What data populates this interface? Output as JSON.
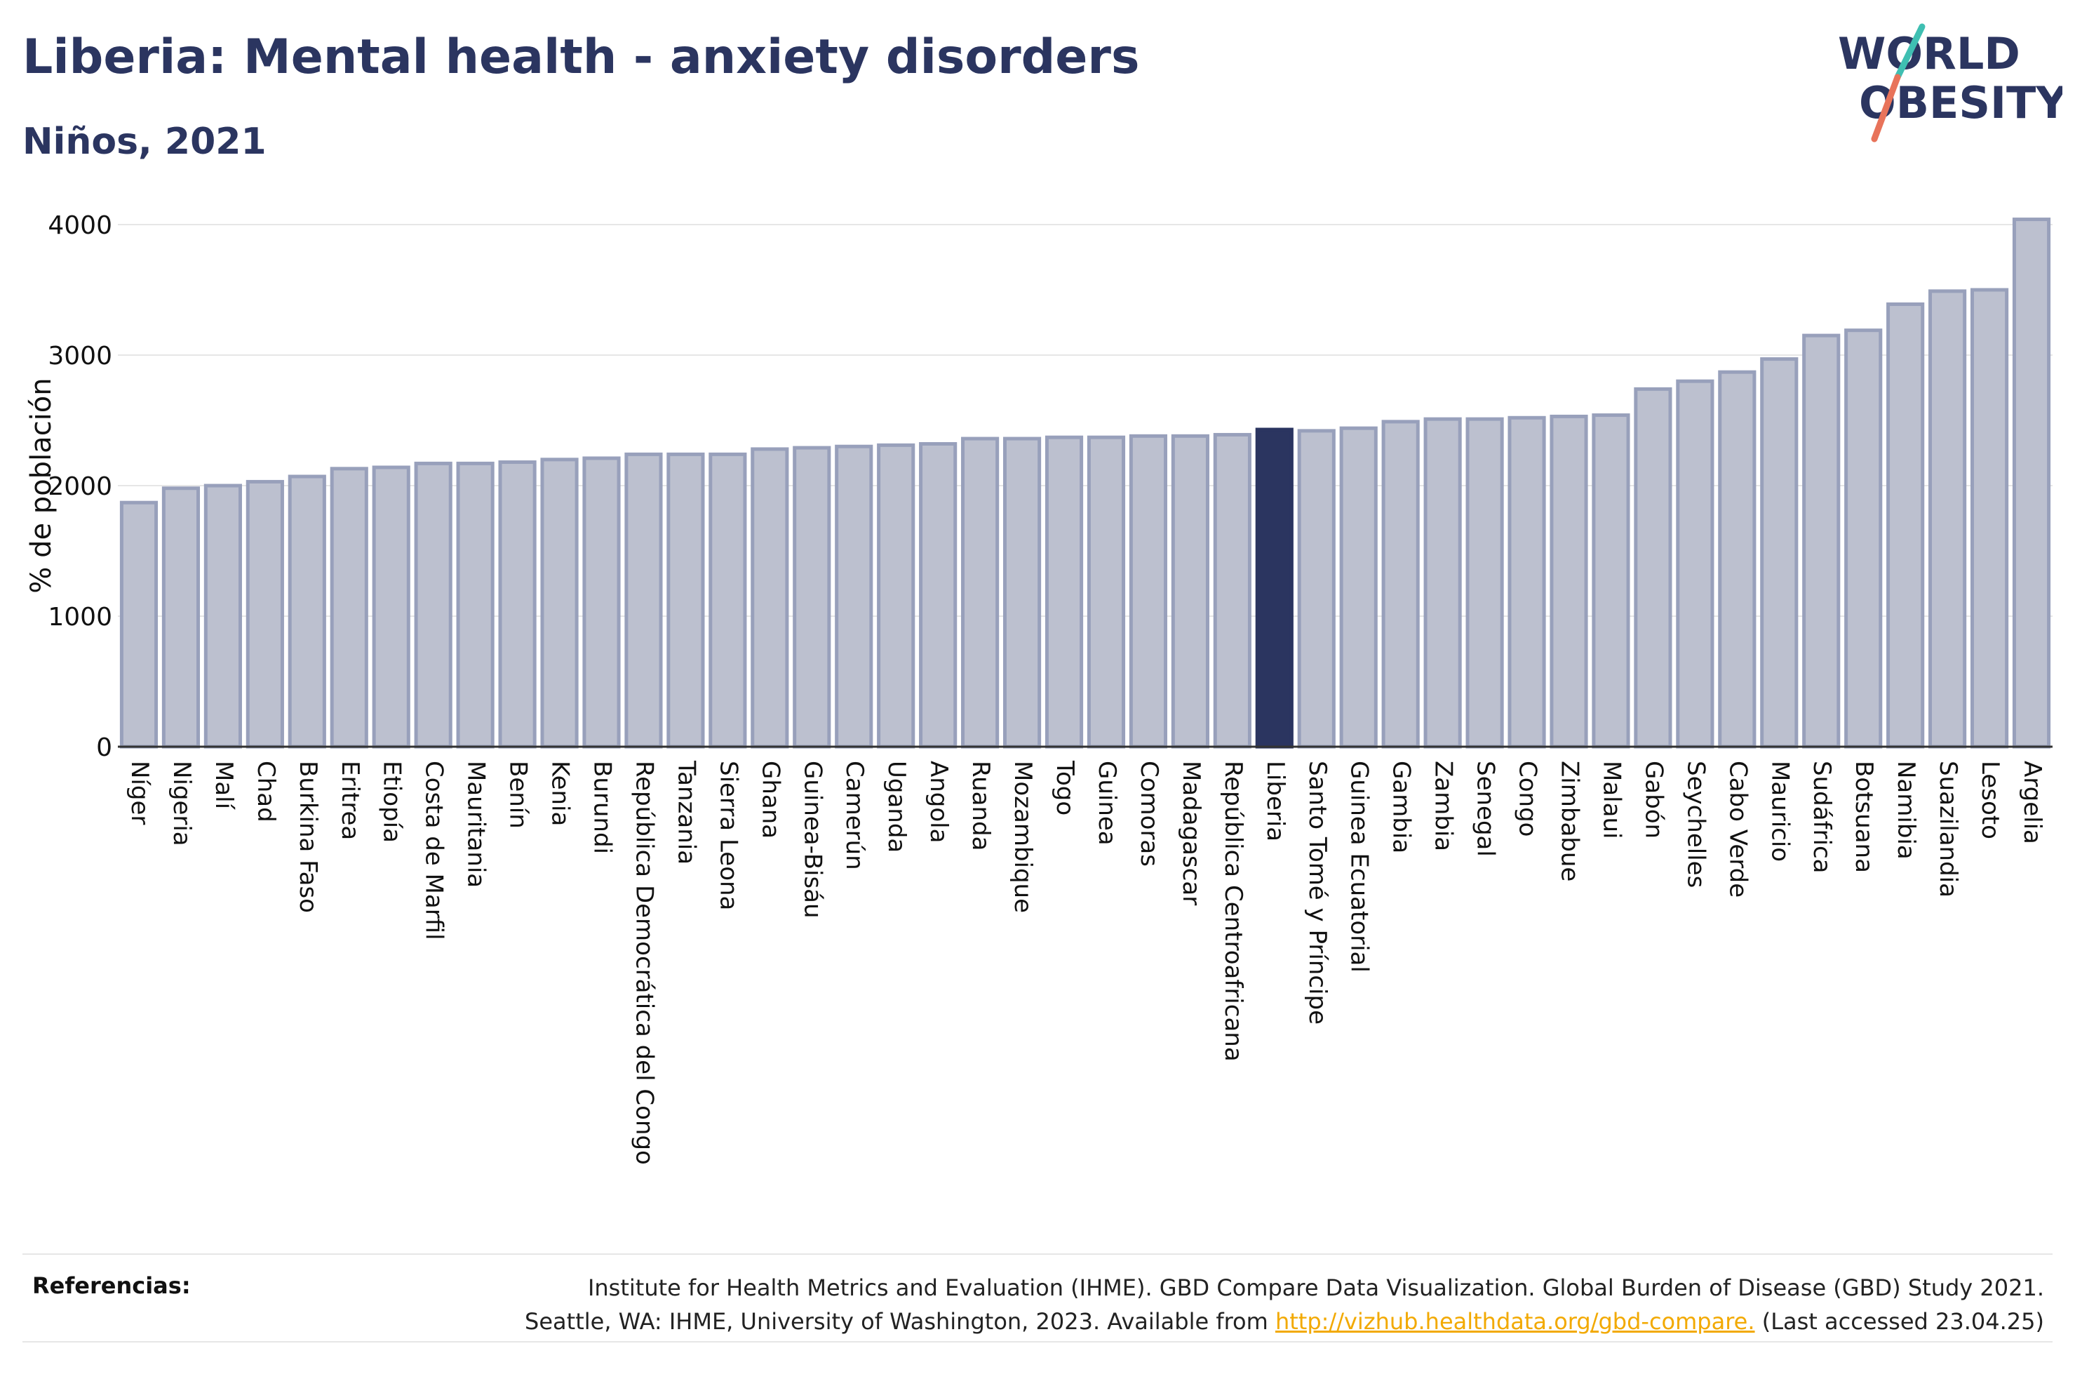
{
  "header": {
    "title": "Liberia: Mental health - anxiety disorders",
    "subtitle": "Niños, 2021"
  },
  "logo": {
    "line1": "WORLD",
    "line2": "OBESITY",
    "accent_colors": [
      "#3fbfb2",
      "#e8735a"
    ]
  },
  "references": {
    "label": "Referencias:",
    "line1": "Institute for Health Metrics and Evaluation (IHME). GBD Compare Data Visualization. Global Burden of Disease (GBD) Study 2021.",
    "line2_prefix": "Seattle, WA: IHME, University of Washington, 2023. Available from",
    "link": "http://vizhub.healthdata.org/gbd-compare.",
    "line2_suffix": "(Last accessed 23.04.25)"
  },
  "chart_data": {
    "type": "bar",
    "ylabel": "% de población",
    "ylim": [
      0,
      4000
    ],
    "yticks": [
      0,
      1000,
      2000,
      3000,
      4000
    ],
    "grid": true,
    "highlight": "Liberia",
    "colors": {
      "bar": "#bcc0cf",
      "bar_border": "#98a0bb",
      "highlight": "#2b3560",
      "grid": "#e6e6e6"
    },
    "categories": [
      "Níger",
      "Nigeria",
      "Malí",
      "Chad",
      "Burkina Faso",
      "Eritrea",
      "Etiopía",
      "Costa de Marfil",
      "Mauritania",
      "Benín",
      "Kenia",
      "Burundi",
      "República Democrática del Congo",
      "Tanzania",
      "Sierra Leona",
      "Ghana",
      "Guinea-Bisáu",
      "Camerún",
      "Uganda",
      "Angola",
      "Ruanda",
      "Mozambique",
      "Togo",
      "Guinea",
      "Comoras",
      "Madagascar",
      "República Centroafricana",
      "Liberia",
      "Santo Tomé y Príncipe",
      "Guinea Ecuatorial",
      "Gambia",
      "Zambia",
      "Senegal",
      "Congo",
      "Zimbabue",
      "Malaui",
      "Gabón",
      "Seychelles",
      "Cabo Verde",
      "Mauricio",
      "Sudáfrica",
      "Botsuana",
      "Namibia",
      "Suazilandia",
      "Lesoto",
      "Argelia"
    ],
    "values": [
      1870,
      1980,
      2000,
      2030,
      2070,
      2130,
      2140,
      2170,
      2170,
      2180,
      2200,
      2210,
      2240,
      2240,
      2240,
      2280,
      2290,
      2300,
      2310,
      2320,
      2360,
      2360,
      2370,
      2370,
      2380,
      2380,
      2390,
      2430,
      2420,
      2440,
      2490,
      2510,
      2510,
      2520,
      2530,
      2540,
      2740,
      2800,
      2870,
      2970,
      3150,
      3190,
      3390,
      3490,
      3500,
      4040
    ]
  }
}
